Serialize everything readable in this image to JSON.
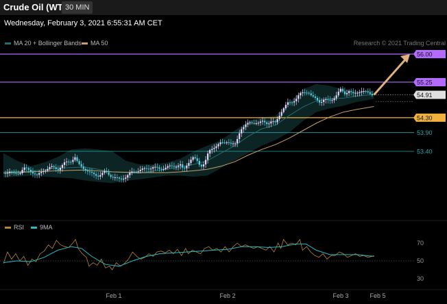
{
  "header": {
    "title": "Crude Oil (WTI)",
    "timeframe": "30 MIN"
  },
  "timestamp": "Wednesday, February 3, 2021 6:55:31 AM CET",
  "legend": {
    "ma20_bb": "MA 20 + Bollinger Bands",
    "ma50": "MA 50",
    "rsi": "RSI",
    "nine_ma": "9MA"
  },
  "credit": "Research © 2021 Trading Central",
  "colors": {
    "up_candle": "#e6d9ff",
    "down_candle": "#4dd0e1",
    "ma20": "#1f6f6f",
    "ma50": "#c8a06a",
    "resistance": "#b36bff",
    "pivot": "#f0b23c",
    "support": "#2aa7a7",
    "last_price": "#e0e0e0",
    "target_arrow": "#e0b080",
    "rsi_line": "#b8863b",
    "rsi_ma": "#28b8c8"
  },
  "chart_data": [
    {
      "type": "candlestick",
      "title": "Crude Oil (WTI)",
      "timeframe": "30 MIN",
      "x_ticks": [
        "Feb 1",
        "Feb 2",
        "Feb 3",
        "Feb 5"
      ],
      "y_ticks": [],
      "ylim": [
        52.3,
        56.15
      ],
      "close_path": [
        [
          0,
          52.82
        ],
        [
          8,
          52.86
        ],
        [
          16,
          52.79
        ],
        [
          24,
          52.83
        ],
        [
          30,
          52.95
        ],
        [
          40,
          52.88
        ],
        [
          50,
          52.75
        ],
        [
          60,
          52.9
        ],
        [
          70,
          52.98
        ],
        [
          80,
          52.92
        ],
        [
          90,
          53.08
        ],
        [
          100,
          53.15
        ],
        [
          105,
          53.25
        ],
        [
          110,
          53.05
        ],
        [
          118,
          52.95
        ],
        [
          125,
          52.85
        ],
        [
          130,
          52.8
        ],
        [
          140,
          52.75
        ],
        [
          150,
          52.85
        ],
        [
          160,
          52.72
        ],
        [
          170,
          52.65
        ],
        [
          180,
          52.72
        ],
        [
          190,
          52.85
        ],
        [
          200,
          52.9
        ],
        [
          210,
          52.93
        ],
        [
          220,
          52.98
        ],
        [
          230,
          52.92
        ],
        [
          240,
          52.98
        ],
        [
          250,
          53.0
        ],
        [
          260,
          53.05
        ],
        [
          265,
          52.88
        ],
        [
          272,
          53.1
        ],
        [
          278,
          53.25
        ],
        [
          284,
          53.15
        ],
        [
          290,
          53.0
        ],
        [
          296,
          53.1
        ],
        [
          302,
          53.38
        ],
        [
          308,
          53.48
        ],
        [
          312,
          53.55
        ],
        [
          318,
          53.62
        ],
        [
          324,
          53.6
        ],
        [
          330,
          53.68
        ],
        [
          336,
          53.6
        ],
        [
          342,
          53.58
        ],
        [
          346,
          53.85
        ],
        [
          350,
          54.02
        ],
        [
          356,
          54.1
        ],
        [
          362,
          54.15
        ],
        [
          370,
          54.18
        ],
        [
          376,
          54.15
        ],
        [
          382,
          54.2
        ],
        [
          388,
          54.15
        ],
        [
          394,
          54.2
        ],
        [
          400,
          54.15
        ],
        [
          404,
          54.3
        ],
        [
          408,
          54.45
        ],
        [
          412,
          54.55
        ],
        [
          418,
          54.68
        ],
        [
          424,
          54.72
        ],
        [
          430,
          54.8
        ],
        [
          436,
          54.92
        ],
        [
          442,
          54.98
        ],
        [
          448,
          55.0
        ],
        [
          454,
          54.85
        ],
        [
          460,
          54.8
        ],
        [
          466,
          54.72
        ],
        [
          472,
          54.78
        ],
        [
          478,
          54.75
        ],
        [
          484,
          54.8
        ],
        [
          490,
          54.9
        ],
        [
          496,
          55.05
        ],
        [
          502,
          54.95
        ],
        [
          508,
          55.02
        ],
        [
          514,
          54.92
        ],
        [
          520,
          54.98
        ],
        [
          526,
          55.02
        ],
        [
          532,
          54.98
        ],
        [
          538,
          54.96
        ],
        [
          545,
          54.91
        ]
      ],
      "ma50_path": [
        [
          0,
          52.82
        ],
        [
          40,
          52.85
        ],
        [
          80,
          52.88
        ],
        [
          120,
          52.9
        ],
        [
          160,
          52.85
        ],
        [
          200,
          52.83
        ],
        [
          240,
          52.83
        ],
        [
          260,
          52.85
        ],
        [
          280,
          52.88
        ],
        [
          300,
          52.92
        ],
        [
          320,
          53.0
        ],
        [
          340,
          53.12
        ],
        [
          360,
          53.3
        ],
        [
          380,
          53.45
        ],
        [
          400,
          53.58
        ],
        [
          420,
          53.75
        ],
        [
          440,
          53.95
        ],
        [
          460,
          54.15
        ],
        [
          480,
          54.32
        ],
        [
          500,
          54.45
        ],
        [
          520,
          54.52
        ],
        [
          545,
          54.6
        ]
      ],
      "ma20_path": [
        [
          0,
          52.85
        ],
        [
          40,
          52.87
        ],
        [
          80,
          52.95
        ],
        [
          120,
          52.98
        ],
        [
          160,
          52.85
        ],
        [
          200,
          52.82
        ],
        [
          240,
          52.92
        ],
        [
          260,
          52.98
        ],
        [
          280,
          53.05
        ],
        [
          300,
          53.15
        ],
        [
          320,
          53.35
        ],
        [
          340,
          53.55
        ],
        [
          360,
          53.8
        ],
        [
          380,
          54.0
        ],
        [
          400,
          54.1
        ],
        [
          420,
          54.35
        ],
        [
          440,
          54.58
        ],
        [
          460,
          54.75
        ],
        [
          480,
          54.8
        ],
        [
          500,
          54.82
        ],
        [
          520,
          54.88
        ],
        [
          545,
          54.92
        ]
      ],
      "bb_upper_path": [
        [
          0,
          53.35
        ],
        [
          20,
          53.15
        ],
        [
          40,
          53.0
        ],
        [
          60,
          53.1
        ],
        [
          80,
          53.25
        ],
        [
          100,
          53.45
        ],
        [
          120,
          53.48
        ],
        [
          140,
          53.45
        ],
        [
          160,
          53.4
        ],
        [
          180,
          53.15
        ],
        [
          200,
          53.05
        ],
        [
          220,
          53.05
        ],
        [
          240,
          53.1
        ],
        [
          260,
          53.2
        ],
        [
          280,
          53.4
        ],
        [
          300,
          53.55
        ],
        [
          320,
          53.7
        ],
        [
          340,
          53.95
        ],
        [
          360,
          54.2
        ],
        [
          380,
          54.3
        ],
        [
          400,
          54.35
        ],
        [
          420,
          54.7
        ],
        [
          440,
          55.05
        ],
        [
          460,
          55.2
        ],
        [
          480,
          55.15
        ],
        [
          500,
          55.05
        ],
        [
          520,
          55.02
        ],
        [
          545,
          55.02
        ]
      ],
      "bb_lower_path": [
        [
          0,
          52.7
        ],
        [
          20,
          52.72
        ],
        [
          40,
          52.75
        ],
        [
          60,
          52.72
        ],
        [
          80,
          52.7
        ],
        [
          100,
          52.68
        ],
        [
          120,
          52.62
        ],
        [
          140,
          52.58
        ],
        [
          160,
          52.55
        ],
        [
          180,
          52.62
        ],
        [
          200,
          52.65
        ],
        [
          220,
          52.7
        ],
        [
          240,
          52.75
        ],
        [
          260,
          52.75
        ],
        [
          280,
          52.72
        ],
        [
          300,
          52.75
        ],
        [
          320,
          52.95
        ],
        [
          340,
          53.15
        ],
        [
          360,
          53.35
        ],
        [
          380,
          53.55
        ],
        [
          400,
          53.7
        ],
        [
          420,
          53.9
        ],
        [
          440,
          54.2
        ],
        [
          460,
          54.45
        ],
        [
          480,
          54.55
        ],
        [
          500,
          54.62
        ],
        [
          520,
          54.72
        ],
        [
          545,
          54.8
        ]
      ],
      "levels": [
        {
          "value": 56.0,
          "label": "56.00",
          "kind": "resistance"
        },
        {
          "value": 55.25,
          "label": "55.25",
          "kind": "resistance"
        },
        {
          "value": 54.91,
          "label": "54.91",
          "kind": "last"
        },
        {
          "value": 54.3,
          "label": "54.30",
          "kind": "pivot"
        },
        {
          "value": 53.9,
          "label": "53.90",
          "kind": "support"
        },
        {
          "value": 53.4,
          "label": "53.40",
          "kind": "support"
        }
      ],
      "target_arrow": {
        "from": [
          545,
          54.91
        ],
        "to": [
          598,
          56.0
        ]
      }
    },
    {
      "type": "line",
      "series": [
        {
          "name": "RSI",
          "color": "#b8863b",
          "points": [
            [
              0,
              47
            ],
            [
              6,
              60
            ],
            [
              12,
              52
            ],
            [
              18,
              58
            ],
            [
              24,
              50
            ],
            [
              30,
              55
            ],
            [
              36,
              45
            ],
            [
              42,
              52
            ],
            [
              48,
              49
            ],
            [
              54,
              58
            ],
            [
              60,
              61
            ],
            [
              66,
              68
            ],
            [
              72,
              64
            ],
            [
              78,
              73
            ],
            [
              84,
              68
            ],
            [
              90,
              66
            ],
            [
              96,
              65
            ],
            [
              102,
              70
            ],
            [
              106,
              74
            ],
            [
              110,
              64
            ],
            [
              116,
              58
            ],
            [
              122,
              54
            ],
            [
              126,
              44
            ],
            [
              132,
              48
            ],
            [
              138,
              45
            ],
            [
              144,
              52
            ],
            [
              150,
              42
            ],
            [
              156,
              44
            ],
            [
              160,
              40
            ],
            [
              166,
              48
            ],
            [
              172,
              44
            ],
            [
              178,
              47
            ],
            [
              184,
              52
            ],
            [
              190,
              60
            ],
            [
              196,
              55
            ],
            [
              202,
              52
            ],
            [
              208,
              54
            ],
            [
              214,
              58
            ],
            [
              220,
              55
            ],
            [
              226,
              60
            ],
            [
              232,
              61
            ],
            [
              238,
              59
            ],
            [
              244,
              62
            ],
            [
              250,
              58
            ],
            [
              256,
              63
            ],
            [
              262,
              56
            ],
            [
              268,
              64
            ],
            [
              272,
              58
            ],
            [
              278,
              62
            ],
            [
              284,
              60
            ],
            [
              290,
              58
            ],
            [
              296,
              64
            ],
            [
              302,
              66
            ],
            [
              308,
              62
            ],
            [
              314,
              64
            ],
            [
              320,
              60
            ],
            [
              326,
              66
            ],
            [
              332,
              60
            ],
            [
              338,
              66
            ],
            [
              344,
              70
            ],
            [
              350,
              66
            ],
            [
              356,
              68
            ],
            [
              362,
              66
            ],
            [
              368,
              64
            ],
            [
              374,
              66
            ],
            [
              380,
              64
            ],
            [
              386,
              62
            ],
            [
              392,
              66
            ],
            [
              398,
              60
            ],
            [
              404,
              70
            ],
            [
              408,
              64
            ],
            [
              412,
              74
            ],
            [
              418,
              68
            ],
            [
              424,
              70
            ],
            [
              430,
              68
            ],
            [
              436,
              74
            ],
            [
              440,
              62
            ],
            [
              446,
              66
            ],
            [
              452,
              60
            ],
            [
              458,
              56
            ],
            [
              464,
              54
            ],
            [
              470,
              58
            ],
            [
              476,
              52
            ],
            [
              482,
              56
            ],
            [
              488,
              56
            ],
            [
              494,
              60
            ],
            [
              500,
              58
            ],
            [
              506,
              54
            ],
            [
              512,
              56
            ],
            [
              518,
              58
            ],
            [
              524,
              55
            ],
            [
              530,
              56
            ],
            [
              536,
              54
            ],
            [
              542,
              55
            ],
            [
              545,
              56
            ]
          ]
        },
        {
          "name": "9MA",
          "color": "#28b8c8",
          "points": [
            [
              0,
              48
            ],
            [
              20,
              50
            ],
            [
              40,
              49
            ],
            [
              60,
              54
            ],
            [
              80,
              62
            ],
            [
              100,
              66
            ],
            [
              115,
              64
            ],
            [
              130,
              55
            ],
            [
              150,
              46
            ],
            [
              170,
              44
            ],
            [
              190,
              50
            ],
            [
              210,
              55
            ],
            [
              230,
              58
            ],
            [
              250,
              59
            ],
            [
              270,
              60
            ],
            [
              290,
              61
            ],
            [
              310,
              62
            ],
            [
              330,
              63
            ],
            [
              350,
              66
            ],
            [
              370,
              66
            ],
            [
              390,
              65
            ],
            [
              410,
              66
            ],
            [
              430,
              69
            ],
            [
              445,
              69
            ],
            [
              460,
              62
            ],
            [
              480,
              57
            ],
            [
              500,
              57
            ],
            [
              520,
              57
            ],
            [
              545,
              55
            ]
          ]
        }
      ],
      "y_ticks": [
        "70",
        "50",
        "30"
      ],
      "ylim": [
        20,
        85
      ]
    }
  ]
}
